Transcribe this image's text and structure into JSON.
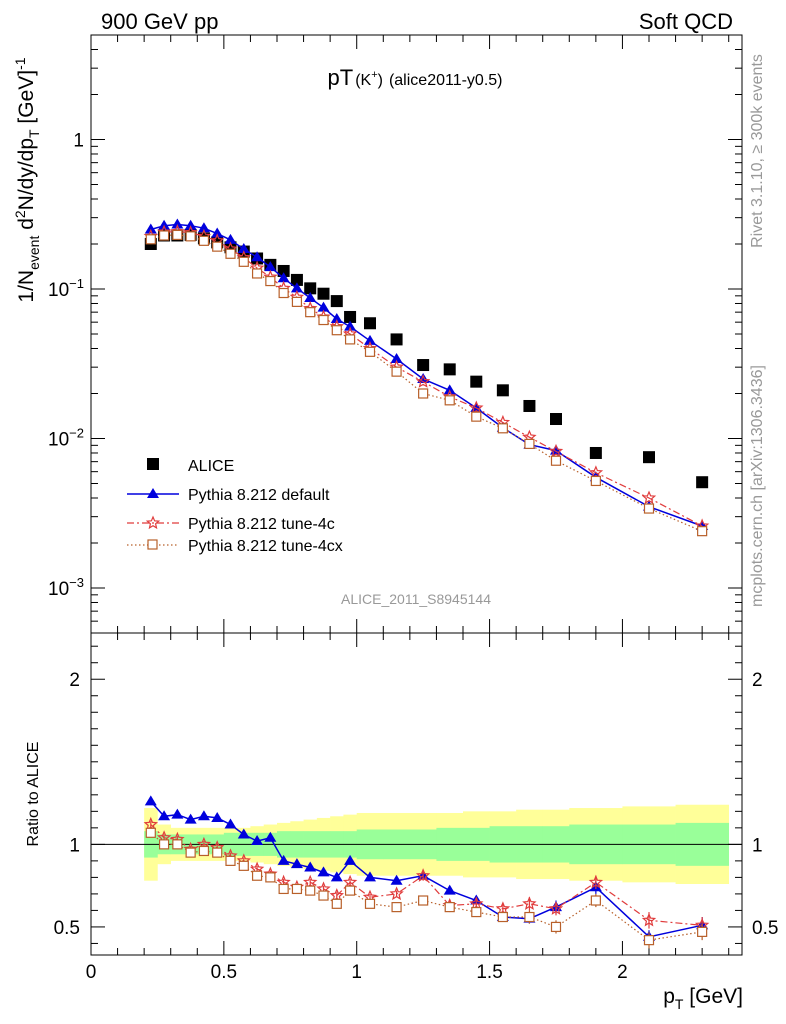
{
  "header": {
    "energy_label": "900 GeV pp",
    "process_label": "Soft QCD"
  },
  "side_labels": {
    "rivet": "Rivet 3.1.10, ≥ 300k events",
    "mcplots": "mcplots.cern.ch [arXiv:1306.3436]"
  },
  "chart_data": [
    {
      "type": "scatter",
      "panel": "main",
      "title_main": "pT",
      "title_particle": "(K",
      "title_charge": "+",
      "title_close": ")",
      "title_tag": "(alice2011-y0.5)",
      "watermark": "ALICE_2011_S8945144",
      "yscale": "log",
      "xlim": [
        0,
        2.45
      ],
      "ylim": [
        0.0005,
        5
      ],
      "ylabel": {
        "prefix": "1/N",
        "sub": "event",
        "mid": " d",
        "sup": "2",
        "rest": "N/dy/dp",
        "sub2": "T",
        "unit": " [GeV]",
        "sup2": "-1"
      },
      "yticks": [
        {
          "v": 0.001,
          "base": "10",
          "exp": "−3"
        },
        {
          "v": 0.01,
          "base": "10",
          "exp": "−2"
        },
        {
          "v": 0.1,
          "base": "10",
          "exp": "−1"
        },
        {
          "v": 1,
          "base": "1",
          "exp": ""
        }
      ],
      "legend_position": "bottom-left",
      "legend": [
        {
          "label": "ALICE",
          "color": "#000000",
          "marker": "square",
          "line": "none"
        },
        {
          "label": "Pythia 8.212 default",
          "color": "#0000dd",
          "marker": "triangle",
          "line": "solid"
        },
        {
          "label": "Pythia 8.212 tune-4c",
          "color": "#e03c3c",
          "marker": "star",
          "line": "dashdot"
        },
        {
          "label": "Pythia 8.212 tune-4cx",
          "color": "#b8602a",
          "marker": "opensquare",
          "line": "dotted"
        }
      ],
      "x": [
        0.225,
        0.275,
        0.325,
        0.375,
        0.425,
        0.475,
        0.525,
        0.575,
        0.625,
        0.675,
        0.725,
        0.775,
        0.825,
        0.875,
        0.925,
        0.975,
        1.05,
        1.15,
        1.25,
        1.35,
        1.45,
        1.55,
        1.65,
        1.75,
        1.9,
        2.1,
        2.3
      ],
      "series": [
        {
          "name": "ALICE",
          "values": [
            0.2,
            0.228,
            0.228,
            0.23,
            0.218,
            0.205,
            0.19,
            0.178,
            0.16,
            0.145,
            0.132,
            0.115,
            0.101,
            0.093,
            0.083,
            0.065,
            0.059,
            0.046,
            0.031,
            0.029,
            0.024,
            0.021,
            0.0165,
            0.0135,
            0.008,
            0.0075,
            0.0051
          ]
        },
        {
          "name": "Pythia 8.212 default",
          "values": [
            0.25,
            0.265,
            0.27,
            0.265,
            0.255,
            0.235,
            0.213,
            0.185,
            0.163,
            0.14,
            0.118,
            0.101,
            0.087,
            0.075,
            0.063,
            0.056,
            0.045,
            0.034,
            0.025,
            0.021,
            0.016,
            0.0118,
            0.0091,
            0.0083,
            0.0055,
            0.0035,
            0.0026
          ]
        },
        {
          "name": "Pythia 8.212 tune-4c",
          "values": [
            0.225,
            0.24,
            0.242,
            0.238,
            0.225,
            0.21,
            0.185,
            0.162,
            0.138,
            0.12,
            0.101,
            0.088,
            0.074,
            0.065,
            0.056,
            0.05,
            0.04,
            0.03,
            0.024,
            0.019,
            0.016,
            0.0128,
            0.0102,
            0.0082,
            0.0059,
            0.004,
            0.0026
          ]
        },
        {
          "name": "Pythia 8.212 tune-4cx",
          "values": [
            0.215,
            0.228,
            0.23,
            0.225,
            0.21,
            0.192,
            0.172,
            0.152,
            0.127,
            0.113,
            0.094,
            0.082,
            0.07,
            0.062,
            0.053,
            0.046,
            0.038,
            0.028,
            0.02,
            0.018,
            0.014,
            0.0117,
            0.0092,
            0.0071,
            0.0052,
            0.0034,
            0.0024
          ]
        }
      ]
    },
    {
      "type": "line",
      "panel": "ratio",
      "ylabel": "Ratio to ALICE",
      "xlabel_main": "p",
      "xlabel_sub": "T",
      "xlabel_unit": " [GeV]",
      "xlim": [
        0,
        2.45
      ],
      "ylim": [
        0.33,
        2.28
      ],
      "xticks": [
        {
          "v": 0,
          "label": "0"
        },
        {
          "v": 0.5,
          "label": "0.5"
        },
        {
          "v": 1,
          "label": "1"
        },
        {
          "v": 1.5,
          "label": "1.5"
        },
        {
          "v": 2,
          "label": "2"
        }
      ],
      "yticks": [
        {
          "v": 0.5,
          "label": "0.5"
        },
        {
          "v": 1,
          "label": "1"
        },
        {
          "v": 2,
          "label": "2"
        }
      ],
      "x": [
        0.225,
        0.275,
        0.325,
        0.375,
        0.425,
        0.475,
        0.525,
        0.575,
        0.625,
        0.675,
        0.725,
        0.775,
        0.825,
        0.875,
        0.925,
        0.975,
        1.05,
        1.15,
        1.25,
        1.35,
        1.45,
        1.55,
        1.65,
        1.75,
        1.9,
        2.1,
        2.3
      ],
      "bin_edges": [
        0.2,
        0.25,
        0.3,
        0.35,
        0.4,
        0.45,
        0.5,
        0.55,
        0.6,
        0.65,
        0.7,
        0.75,
        0.8,
        0.85,
        0.9,
        0.95,
        1.0,
        1.1,
        1.2,
        1.3,
        1.4,
        1.5,
        1.6,
        1.7,
        1.8,
        2.0,
        2.2,
        2.4
      ],
      "band_inner": [
        0.08,
        0.06,
        0.06,
        0.06,
        0.06,
        0.06,
        0.07,
        0.07,
        0.07,
        0.07,
        0.08,
        0.08,
        0.08,
        0.08,
        0.08,
        0.08,
        0.09,
        0.09,
        0.09,
        0.1,
        0.1,
        0.11,
        0.11,
        0.11,
        0.12,
        0.12,
        0.13
      ],
      "band_outer": [
        0.22,
        0.12,
        0.1,
        0.1,
        0.1,
        0.1,
        0.1,
        0.1,
        0.11,
        0.12,
        0.13,
        0.14,
        0.15,
        0.16,
        0.17,
        0.18,
        0.19,
        0.19,
        0.19,
        0.19,
        0.2,
        0.2,
        0.21,
        0.21,
        0.22,
        0.23,
        0.24
      ],
      "series": [
        {
          "name": "Pythia 8.212 default",
          "values": [
            1.26,
            1.17,
            1.18,
            1.15,
            1.17,
            1.16,
            1.12,
            1.06,
            1.02,
            1.04,
            0.9,
            0.88,
            0.86,
            0.83,
            0.8,
            0.9,
            0.8,
            0.78,
            0.81,
            0.72,
            0.66,
            0.56,
            0.55,
            0.62,
            0.74,
            0.44,
            0.51
          ],
          "errors": [
            0.02,
            0.02,
            0.02,
            0.02,
            0.02,
            0.02,
            0.02,
            0.02,
            0.02,
            0.02,
            0.02,
            0.02,
            0.02,
            0.02,
            0.02,
            0.02,
            0.02,
            0.02,
            0.02,
            0.02,
            0.03,
            0.03,
            0.03,
            0.04,
            0.04,
            0.04,
            0.05
          ]
        },
        {
          "name": "Pythia 8.212 tune-4c",
          "values": [
            1.12,
            1.04,
            1.03,
            0.97,
            1.0,
            0.98,
            0.93,
            0.9,
            0.85,
            0.82,
            0.77,
            0.74,
            0.77,
            0.73,
            0.69,
            0.77,
            0.68,
            0.7,
            0.81,
            0.63,
            0.64,
            0.61,
            0.64,
            0.61,
            0.77,
            0.54,
            0.51
          ],
          "errors": [
            0.02,
            0.02,
            0.02,
            0.02,
            0.02,
            0.02,
            0.02,
            0.02,
            0.02,
            0.02,
            0.02,
            0.02,
            0.02,
            0.02,
            0.02,
            0.02,
            0.02,
            0.02,
            0.03,
            0.03,
            0.03,
            0.03,
            0.04,
            0.04,
            0.04,
            0.05,
            0.05
          ]
        },
        {
          "name": "Pythia 8.212 tune-4cx",
          "values": [
            1.07,
            1.0,
            1.0,
            0.95,
            0.96,
            0.95,
            0.9,
            0.87,
            0.81,
            0.8,
            0.73,
            0.73,
            0.72,
            0.69,
            0.64,
            0.72,
            0.64,
            0.62,
            0.66,
            0.62,
            0.59,
            0.56,
            0.56,
            0.5,
            0.66,
            0.42,
            0.47
          ],
          "errors": [
            0.02,
            0.02,
            0.02,
            0.02,
            0.02,
            0.02,
            0.02,
            0.02,
            0.02,
            0.02,
            0.02,
            0.02,
            0.02,
            0.02,
            0.02,
            0.02,
            0.02,
            0.02,
            0.03,
            0.03,
            0.03,
            0.03,
            0.04,
            0.04,
            0.04,
            0.05,
            0.05
          ]
        }
      ]
    }
  ]
}
